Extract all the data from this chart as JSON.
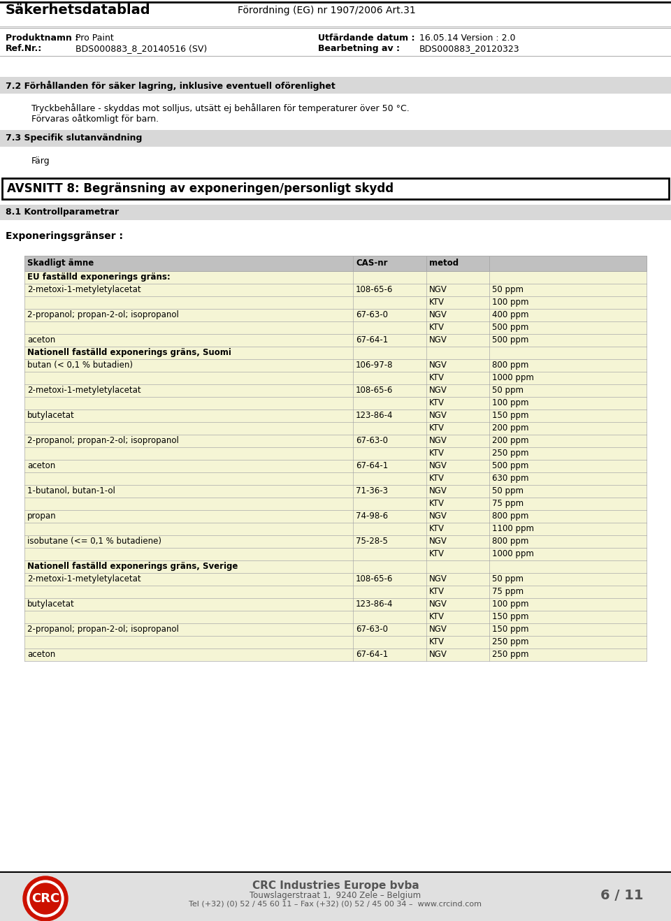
{
  "page_bg": "#ffffff",
  "header": {
    "title_left": "Säkerhetsdatablad",
    "title_right": "Förordning (EG) nr 1907/2006 Art.31",
    "row2_labels": [
      "Produktnamn :",
      "Ref.Nr.:"
    ],
    "row2_values": [
      "Pro Paint",
      "BDS000883_8_20140516 (SV)"
    ],
    "row2_right_labels": [
      "Utfärdande datum :",
      "Bearbetning av :"
    ],
    "row2_right_values": [
      "16.05.14 Version : 2.0",
      "BDS000883_20120323"
    ]
  },
  "section72": {
    "title": "7.2 Förhållanden för säker lagring, inklusive eventuell oförenlighet",
    "text1": "Tryckbehållare - skyddas mot solljus, utsätt ej behållaren för temperaturer över 50 °C.",
    "text2": "Förvaras oåtkomligt för barn."
  },
  "section73": {
    "title": "7.3 Specifik slutanvändning",
    "text": "Färg"
  },
  "section8_title": "AVSNITT 8: Begränsning av exponeringen/personligt skydd",
  "section81_title": "8.1 Kontrollparametrar",
  "expgranser_title": "Exponeringsgränser :",
  "table_header_bg": "#c0c0c0",
  "table_row_bg_light": "#f5f5d5",
  "table_border": "#aaaaaa",
  "section_bar_bg": "#d8d8d8",
  "table_rows": [
    {
      "type": "section",
      "col0": "EU faställd exponerings gräns:",
      "col1": "",
      "col2": "",
      "col3": ""
    },
    {
      "type": "data",
      "col0": "2-metoxi-1-metyletylacetat",
      "col1": "108-65-6",
      "col2": "NGV",
      "col3": "50 ppm"
    },
    {
      "type": "data",
      "col0": "",
      "col1": "",
      "col2": "KTV",
      "col3": "100 ppm"
    },
    {
      "type": "data",
      "col0": "2-propanol; propan-2-ol; isopropanol",
      "col1": "67-63-0",
      "col2": "NGV",
      "col3": "400 ppm"
    },
    {
      "type": "data",
      "col0": "",
      "col1": "",
      "col2": "KTV",
      "col3": "500 ppm"
    },
    {
      "type": "data",
      "col0": "aceton",
      "col1": "67-64-1",
      "col2": "NGV",
      "col3": "500 ppm"
    },
    {
      "type": "section",
      "col0": "Nationell faställd exponerings gräns, Suomi",
      "col1": "",
      "col2": "",
      "col3": ""
    },
    {
      "type": "data",
      "col0": "butan (< 0,1 % butadien)",
      "col1": "106-97-8",
      "col2": "NGV",
      "col3": "800 ppm"
    },
    {
      "type": "data",
      "col0": "",
      "col1": "",
      "col2": "KTV",
      "col3": "1000 ppm"
    },
    {
      "type": "data",
      "col0": "2-metoxi-1-metyletylacetat",
      "col1": "108-65-6",
      "col2": "NGV",
      "col3": "50 ppm"
    },
    {
      "type": "data",
      "col0": "",
      "col1": "",
      "col2": "KTV",
      "col3": "100 ppm"
    },
    {
      "type": "data",
      "col0": "butylacetat",
      "col1": "123-86-4",
      "col2": "NGV",
      "col3": "150 ppm"
    },
    {
      "type": "data",
      "col0": "",
      "col1": "",
      "col2": "KTV",
      "col3": "200 ppm"
    },
    {
      "type": "data",
      "col0": "2-propanol; propan-2-ol; isopropanol",
      "col1": "67-63-0",
      "col2": "NGV",
      "col3": "200 ppm"
    },
    {
      "type": "data",
      "col0": "",
      "col1": "",
      "col2": "KTV",
      "col3": "250 ppm"
    },
    {
      "type": "data",
      "col0": "aceton",
      "col1": "67-64-1",
      "col2": "NGV",
      "col3": "500 ppm"
    },
    {
      "type": "data",
      "col0": "",
      "col1": "",
      "col2": "KTV",
      "col3": "630 ppm"
    },
    {
      "type": "data",
      "col0": "1-butanol, butan-1-ol",
      "col1": "71-36-3",
      "col2": "NGV",
      "col3": "50 ppm"
    },
    {
      "type": "data",
      "col0": "",
      "col1": "",
      "col2": "KTV",
      "col3": "75 ppm"
    },
    {
      "type": "data",
      "col0": "propan",
      "col1": "74-98-6",
      "col2": "NGV",
      "col3": "800 ppm"
    },
    {
      "type": "data",
      "col0": "",
      "col1": "",
      "col2": "KTV",
      "col3": "1100 ppm"
    },
    {
      "type": "data",
      "col0": "isobutane (<= 0,1 % butadiene)",
      "col1": "75-28-5",
      "col2": "NGV",
      "col3": "800 ppm"
    },
    {
      "type": "data",
      "col0": "",
      "col1": "",
      "col2": "KTV",
      "col3": "1000 ppm"
    },
    {
      "type": "section",
      "col0": "Nationell faställd exponerings gräns, Sverige",
      "col1": "",
      "col2": "",
      "col3": ""
    },
    {
      "type": "data",
      "col0": "2-metoxi-1-metyletylacetat",
      "col1": "108-65-6",
      "col2": "NGV",
      "col3": "50 ppm"
    },
    {
      "type": "data",
      "col0": "",
      "col1": "",
      "col2": "KTV",
      "col3": "75 ppm"
    },
    {
      "type": "data",
      "col0": "butylacetat",
      "col1": "123-86-4",
      "col2": "NGV",
      "col3": "100 ppm"
    },
    {
      "type": "data",
      "col0": "",
      "col1": "",
      "col2": "KTV",
      "col3": "150 ppm"
    },
    {
      "type": "data",
      "col0": "2-propanol; propan-2-ol; isopropanol",
      "col1": "67-63-0",
      "col2": "NGV",
      "col3": "150 ppm"
    },
    {
      "type": "data",
      "col0": "",
      "col1": "",
      "col2": "KTV",
      "col3": "250 ppm"
    },
    {
      "type": "data",
      "col0": "aceton",
      "col1": "67-64-1",
      "col2": "NGV",
      "col3": "250 ppm"
    }
  ],
  "footer": {
    "company": "CRC Industries Europe bvba",
    "address": "Touwslagerstraat 1,  9240 Zele – Belgium",
    "tel": "Tel (+32) (0) 52 / 45 60 11 – Fax (+32) (0) 52 / 45 00 34 –  www.crcind.com",
    "page": "6 / 11"
  }
}
